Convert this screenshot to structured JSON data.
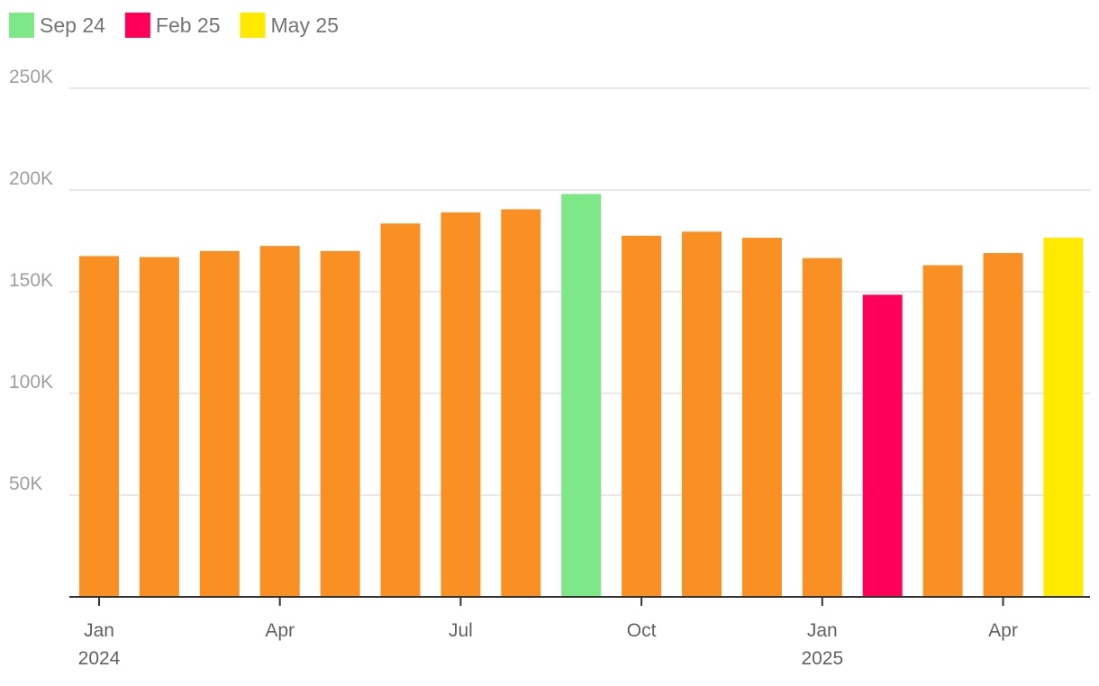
{
  "chart_data": {
    "type": "bar",
    "title": "",
    "xlabel": "",
    "ylabel": "",
    "ylim": [
      0,
      250000
    ],
    "y_ticks": [
      {
        "value": 50000,
        "label": "50K"
      },
      {
        "value": 100000,
        "label": "100K"
      },
      {
        "value": 150000,
        "label": "150K"
      },
      {
        "value": 200000,
        "label": "200K"
      },
      {
        "value": 250000,
        "label": "250K"
      }
    ],
    "categories": [
      "2024-01",
      "2024-02",
      "2024-03",
      "2024-04",
      "2024-05",
      "2024-06",
      "2024-07",
      "2024-08",
      "2024-09",
      "2024-10",
      "2024-11",
      "2024-12",
      "2025-01",
      "2025-02",
      "2025-03",
      "2025-04",
      "2025-05"
    ],
    "values": [
      167500,
      167000,
      170000,
      172500,
      170000,
      183500,
      189000,
      190500,
      198000,
      177500,
      179500,
      176500,
      166500,
      148500,
      163000,
      169000,
      176500
    ],
    "default_color": "#fa8f24",
    "highlights": [
      {
        "category": "2024-09",
        "label": "Sep 24",
        "color": "#7ee787"
      },
      {
        "category": "2025-02",
        "label": "Feb 25",
        "color": "#ff0059"
      },
      {
        "category": "2025-05",
        "label": "May 25",
        "color": "#ffe900"
      }
    ],
    "x_ticks": [
      {
        "category": "2024-01",
        "label": "Jan",
        "sublabel": "2024"
      },
      {
        "category": "2024-04",
        "label": "Apr",
        "sublabel": ""
      },
      {
        "category": "2024-07",
        "label": "Jul",
        "sublabel": ""
      },
      {
        "category": "2024-10",
        "label": "Oct",
        "sublabel": ""
      },
      {
        "category": "2025-01",
        "label": "Jan",
        "sublabel": "2025"
      },
      {
        "category": "2025-04",
        "label": "Apr",
        "sublabel": ""
      }
    ],
    "grid": true,
    "legend_position": "top-left"
  }
}
